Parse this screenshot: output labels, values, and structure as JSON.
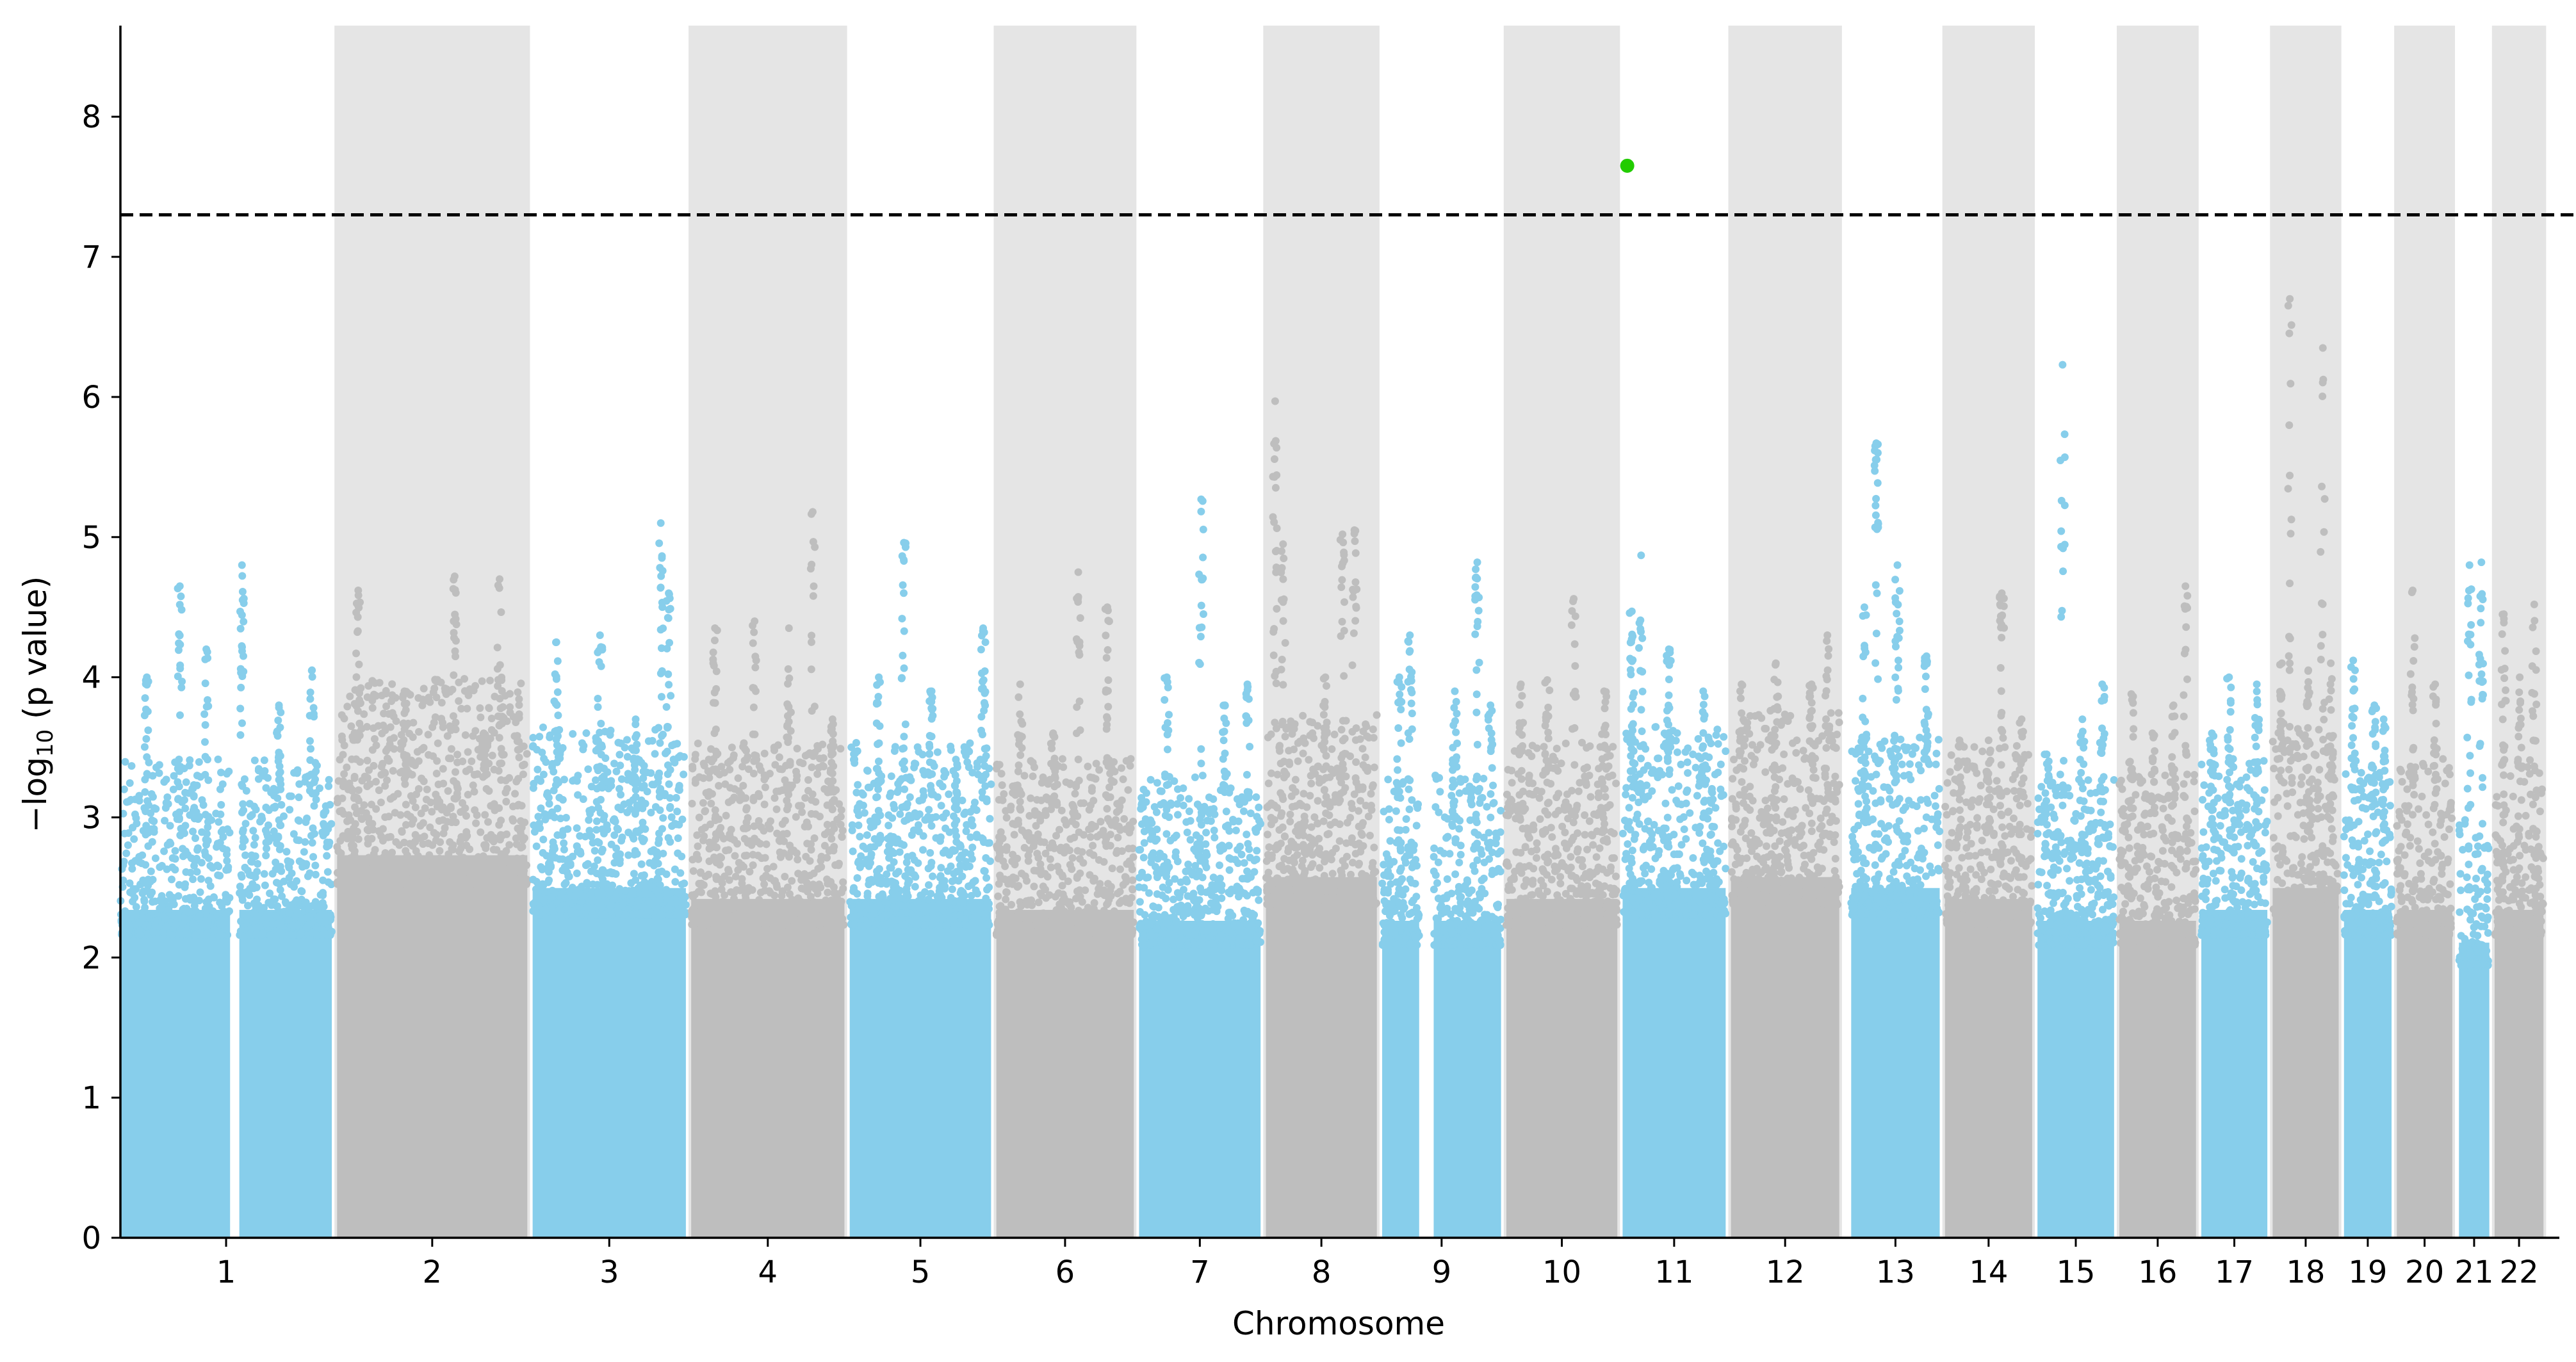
{
  "chart_data": {
    "type": "scatter",
    "subtype": "manhattan",
    "xlabel": "Chromosome",
    "ylabel_parts": [
      "−log",
      "10",
      " (p value)"
    ],
    "ylim": [
      0,
      8.65
    ],
    "yticks": [
      0,
      1,
      2,
      3,
      4,
      5,
      6,
      7,
      8
    ],
    "grid": false,
    "legend": "none",
    "significance_threshold": 7.3,
    "threshold_style": "black dashed line",
    "chromosomes": [
      {
        "label": "1",
        "span": [
          0.0,
          16.0
        ],
        "color": "#87CEEB",
        "band": false,
        "gaps": [
          [
            8.3,
            9.0
          ]
        ],
        "base_max": 3.0,
        "peaks": [
          [
            2.0,
            4.0
          ],
          [
            4.5,
            4.65
          ],
          [
            6.5,
            4.2
          ],
          [
            9.2,
            4.8
          ],
          [
            12.0,
            3.8
          ],
          [
            14.5,
            4.05
          ]
        ]
      },
      {
        "label": "2",
        "span": [
          16.4,
          30.8
        ],
        "color": "#BEBEBE",
        "band": true,
        "gaps": [],
        "base_max": 3.5,
        "peaks": [
          [
            18.0,
            4.62
          ],
          [
            21.5,
            3.9
          ],
          [
            25.3,
            4.72
          ],
          [
            27.5,
            3.6
          ],
          [
            28.7,
            4.7
          ]
        ]
      },
      {
        "label": "3",
        "span": [
          31.2,
          42.8
        ],
        "color": "#87CEEB",
        "band": false,
        "gaps": [],
        "base_max": 3.2,
        "peaks": [
          [
            33.0,
            4.25
          ],
          [
            36.3,
            4.3
          ],
          [
            39.0,
            3.7
          ],
          [
            40.9,
            5.1
          ],
          [
            41.5,
            4.6
          ]
        ]
      },
      {
        "label": "4",
        "span": [
          43.2,
          54.8
        ],
        "color": "#BEBEBE",
        "band": true,
        "gaps": [],
        "base_max": 3.1,
        "peaks": [
          [
            45.0,
            4.35
          ],
          [
            48.0,
            4.4
          ],
          [
            50.6,
            4.35
          ],
          [
            52.4,
            5.18
          ],
          [
            53.9,
            3.7
          ]
        ]
      },
      {
        "label": "5",
        "span": [
          55.2,
          65.9
        ],
        "color": "#87CEEB",
        "band": false,
        "gaps": [],
        "base_max": 3.1,
        "peaks": [
          [
            57.4,
            4.0
          ],
          [
            59.3,
            4.96
          ],
          [
            61.4,
            3.9
          ],
          [
            63.2,
            3.3
          ],
          [
            65.3,
            4.35
          ]
        ]
      },
      {
        "label": "6",
        "span": [
          66.3,
          76.7
        ],
        "color": "#BEBEBE",
        "band": true,
        "gaps": [],
        "base_max": 3.0,
        "peaks": [
          [
            68.1,
            3.95
          ],
          [
            70.6,
            3.6
          ],
          [
            72.5,
            4.75
          ],
          [
            74.7,
            4.5
          ]
        ]
      },
      {
        "label": "7",
        "span": [
          77.1,
          86.3
        ],
        "color": "#87CEEB",
        "band": false,
        "gaps": [],
        "base_max": 2.9,
        "peaks": [
          [
            79.2,
            4.0
          ],
          [
            81.8,
            5.27
          ],
          [
            83.6,
            3.8
          ],
          [
            85.3,
            3.95
          ]
        ]
      },
      {
        "label": "8",
        "span": [
          86.7,
          95.1
        ],
        "color": "#BEBEBE",
        "band": true,
        "gaps": [],
        "base_max": 3.3,
        "peaks": [
          [
            87.4,
            5.97
          ],
          [
            88.0,
            4.95
          ],
          [
            91.2,
            4.0
          ],
          [
            92.5,
            5.02
          ],
          [
            93.4,
            5.05
          ]
        ]
      },
      {
        "label": "9",
        "span": [
          95.5,
          104.5
        ],
        "color": "#87CEEB",
        "band": false,
        "gaps": [
          [
            98.3,
            99.4
          ]
        ],
        "base_max": 2.9,
        "peaks": [
          [
            96.8,
            4.0
          ],
          [
            97.6,
            4.3
          ],
          [
            101.0,
            3.9
          ],
          [
            102.7,
            4.82
          ],
          [
            103.7,
            3.8
          ]
        ]
      },
      {
        "label": "10",
        "span": [
          104.9,
          113.3
        ],
        "color": "#BEBEBE",
        "band": true,
        "gaps": [],
        "base_max": 3.1,
        "peaks": [
          [
            106.0,
            3.95
          ],
          [
            108.0,
            3.98
          ],
          [
            110.0,
            4.56
          ],
          [
            112.3,
            3.9
          ]
        ]
      },
      {
        "label": "11",
        "span": [
          113.7,
          121.5
        ],
        "color": "#87CEEB",
        "band": false,
        "gaps": [],
        "base_max": 3.2,
        "peaks": [
          [
            114.4,
            4.47
          ],
          [
            115.1,
            4.87
          ],
          [
            117.2,
            4.2
          ],
          [
            119.8,
            3.9
          ]
        ]
      },
      {
        "label": "12",
        "span": [
          121.9,
          130.1
        ],
        "color": "#BEBEBE",
        "band": true,
        "gaps": [],
        "base_max": 3.3,
        "peaks": [
          [
            122.7,
            3.95
          ],
          [
            125.3,
            4.1
          ],
          [
            128.0,
            3.95
          ],
          [
            129.2,
            4.3
          ]
        ]
      },
      {
        "label": "13",
        "span": [
          131.0,
          137.7
        ],
        "color": "#87CEEB",
        "band": false,
        "gaps": [],
        "base_max": 3.2,
        "peaks": [
          [
            132.0,
            4.5
          ],
          [
            132.9,
            5.67
          ],
          [
            134.5,
            4.8
          ],
          [
            136.7,
            4.15
          ]
        ]
      },
      {
        "label": "14",
        "span": [
          138.1,
          144.7
        ],
        "color": "#BEBEBE",
        "band": true,
        "gaps": [],
        "base_max": 3.1,
        "peaks": [
          [
            139.2,
            3.55
          ],
          [
            141.4,
            3.55
          ],
          [
            142.4,
            4.6
          ],
          [
            143.9,
            3.7
          ]
        ]
      },
      {
        "label": "15",
        "span": [
          145.1,
          150.9
        ],
        "color": "#87CEEB",
        "band": false,
        "gaps": [],
        "base_max": 2.9,
        "peaks": [
          [
            145.8,
            3.45
          ],
          [
            147.0,
            6.23
          ],
          [
            148.5,
            3.7
          ],
          [
            150.0,
            3.95
          ]
        ]
      },
      {
        "label": "16",
        "span": [
          151.3,
          157.1
        ],
        "color": "#BEBEBE",
        "band": true,
        "gaps": [],
        "base_max": 2.9,
        "peaks": [
          [
            152.2,
            3.88
          ],
          [
            153.8,
            3.6
          ],
          [
            155.4,
            3.8
          ],
          [
            156.3,
            4.65
          ]
        ]
      },
      {
        "label": "17",
        "span": [
          157.5,
          162.5
        ],
        "color": "#87CEEB",
        "band": false,
        "gaps": [],
        "base_max": 3.0,
        "peaks": [
          [
            158.3,
            3.6
          ],
          [
            159.6,
            4.0
          ],
          [
            161.7,
            3.95
          ]
        ]
      },
      {
        "label": "18",
        "span": [
          162.9,
          167.9
        ],
        "color": "#BEBEBE",
        "band": true,
        "gaps": [],
        "base_max": 3.2,
        "peaks": [
          [
            163.6,
            4.1
          ],
          [
            164.2,
            6.7
          ],
          [
            165.6,
            4.05
          ],
          [
            166.7,
            6.35
          ],
          [
            167.3,
            4.1
          ]
        ]
      },
      {
        "label": "19",
        "span": [
          168.3,
          171.9
        ],
        "color": "#87CEEB",
        "band": false,
        "gaps": [],
        "base_max": 3.0,
        "peaks": [
          [
            169.0,
            4.12
          ],
          [
            170.6,
            3.8
          ],
          [
            171.3,
            3.7
          ]
        ]
      },
      {
        "label": "20",
        "span": [
          172.3,
          176.5
        ],
        "color": "#BEBEBE",
        "band": true,
        "gaps": [],
        "base_max": 3.0,
        "peaks": [
          [
            173.5,
            4.62
          ],
          [
            175.2,
            3.95
          ]
        ]
      },
      {
        "label": "21",
        "span": [
          177.0,
          179.3
        ],
        "color": "#87CEEB",
        "band": false,
        "gaps": [],
        "base_max": 2.7,
        "peaks": [
          [
            177.8,
            4.8
          ],
          [
            178.7,
            4.82
          ]
        ]
      },
      {
        "label": "22",
        "span": [
          179.7,
          183.4
        ],
        "color": "#BEBEBE",
        "band": true,
        "gaps": [],
        "base_max": 3.0,
        "peaks": [
          [
            180.4,
            4.45
          ],
          [
            181.6,
            4.0
          ],
          [
            182.7,
            4.52
          ]
        ]
      }
    ],
    "significant_hits": [
      {
        "chromosome": "11",
        "x": 114.05,
        "y": 7.65,
        "color": "#22CC00"
      }
    ],
    "colors": {
      "odd_points": "#87CEEB",
      "even_points": "#BEBEBE",
      "band": "#E5E5E5",
      "highlight": "#22CC00",
      "threshold": "#000000"
    }
  }
}
